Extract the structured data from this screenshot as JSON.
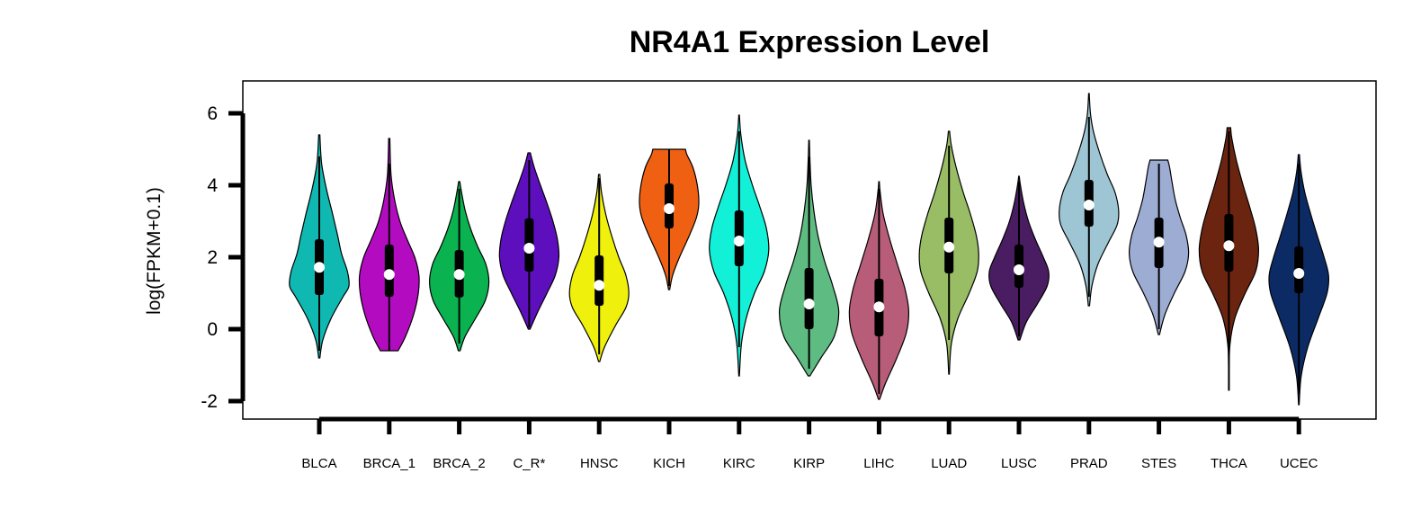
{
  "chart_data": {
    "type": "violin",
    "title": "NR4A1 Expression Level",
    "xlabel": "",
    "ylabel": "log(FPKM+0.1)",
    "ylim": [
      -2.5,
      6.9
    ],
    "yticks": [
      -2,
      0,
      2,
      4,
      6
    ],
    "ytick_labels": [
      "-2",
      "0",
      "2",
      "4",
      "6"
    ],
    "grid": false,
    "legend": "none",
    "categories": [
      "BLCA",
      "BRCA_1",
      "BRCA_2",
      "C_R*",
      "HNSC",
      "KICH",
      "KIRC",
      "KIRP",
      "LIHC",
      "LUAD",
      "LUSC",
      "PRAD",
      "STES",
      "THCA",
      "UCEC"
    ],
    "series": [
      {
        "category": "BLCA",
        "color": "#0fb8b1",
        "min": -0.8,
        "max": 5.4,
        "q1": 0.95,
        "median": 1.72,
        "q3": 2.5,
        "whisker_low": -0.6,
        "whisker_high": 4.8,
        "density": [
          [
            -0.8,
            0.02
          ],
          [
            -0.3,
            0.12
          ],
          [
            0.3,
            0.4
          ],
          [
            0.9,
            0.8
          ],
          [
            1.2,
            1.0
          ],
          [
            1.6,
            0.95
          ],
          [
            2.1,
            0.75
          ],
          [
            2.6,
            0.62
          ],
          [
            3.2,
            0.45
          ],
          [
            3.9,
            0.24
          ],
          [
            4.6,
            0.08
          ],
          [
            5.4,
            0.02
          ]
        ]
      },
      {
        "category": "BRCA_1",
        "color": "#b30cc0",
        "min": -0.6,
        "max": 5.3,
        "q1": 0.9,
        "median": 1.52,
        "q3": 2.35,
        "whisker_low": -0.6,
        "whisker_high": 4.6,
        "density": [
          [
            -0.6,
            0.3
          ],
          [
            -0.2,
            0.55
          ],
          [
            0.4,
            0.82
          ],
          [
            1.0,
            0.98
          ],
          [
            1.5,
            1.0
          ],
          [
            2.0,
            0.86
          ],
          [
            2.5,
            0.6
          ],
          [
            3.0,
            0.36
          ],
          [
            3.6,
            0.18
          ],
          [
            4.3,
            0.06
          ],
          [
            5.3,
            0.02
          ]
        ]
      },
      {
        "category": "BRCA_2",
        "color": "#0ab350",
        "min": -0.6,
        "max": 4.1,
        "q1": 0.88,
        "median": 1.52,
        "q3": 2.2,
        "whisker_low": -0.4,
        "whisker_high": 3.9,
        "density": [
          [
            -0.6,
            0.03
          ],
          [
            -0.2,
            0.2
          ],
          [
            0.3,
            0.55
          ],
          [
            0.8,
            0.88
          ],
          [
            1.3,
            1.0
          ],
          [
            1.8,
            0.9
          ],
          [
            2.3,
            0.62
          ],
          [
            2.8,
            0.38
          ],
          [
            3.3,
            0.2
          ],
          [
            3.8,
            0.08
          ],
          [
            4.1,
            0.02
          ]
        ]
      },
      {
        "category": "C_R*",
        "color": "#5d0fbd",
        "min": 0.0,
        "max": 4.9,
        "q1": 1.6,
        "median": 2.25,
        "q3": 3.08,
        "whisker_low": 0.05,
        "whisker_high": 4.7,
        "density": [
          [
            0.0,
            0.03
          ],
          [
            0.5,
            0.3
          ],
          [
            1.0,
            0.6
          ],
          [
            1.5,
            0.88
          ],
          [
            2.0,
            1.0
          ],
          [
            2.5,
            0.95
          ],
          [
            3.0,
            0.8
          ],
          [
            3.5,
            0.6
          ],
          [
            4.0,
            0.38
          ],
          [
            4.5,
            0.17
          ],
          [
            4.9,
            0.04
          ]
        ]
      },
      {
        "category": "HNSC",
        "color": "#f0f00d",
        "min": -0.9,
        "max": 4.3,
        "q1": 0.65,
        "median": 1.22,
        "q3": 2.05,
        "whisker_low": -0.7,
        "whisker_high": 4.2,
        "density": [
          [
            -0.9,
            0.02
          ],
          [
            -0.5,
            0.18
          ],
          [
            0.1,
            0.55
          ],
          [
            0.6,
            0.9
          ],
          [
            1.0,
            1.0
          ],
          [
            1.5,
            0.9
          ],
          [
            2.0,
            0.66
          ],
          [
            2.6,
            0.42
          ],
          [
            3.2,
            0.22
          ],
          [
            3.8,
            0.08
          ],
          [
            4.3,
            0.02
          ]
        ]
      },
      {
        "category": "KICH",
        "color": "#f06012",
        "min": 1.1,
        "max": 5.0,
        "q1": 2.8,
        "median": 3.35,
        "q3": 4.05,
        "whisker_low": 1.2,
        "whisker_high": 5.0,
        "density": [
          [
            1.1,
            0.02
          ],
          [
            1.5,
            0.12
          ],
          [
            2.0,
            0.35
          ],
          [
            2.6,
            0.68
          ],
          [
            3.1,
            0.92
          ],
          [
            3.5,
            1.0
          ],
          [
            4.0,
            0.95
          ],
          [
            4.5,
            0.8
          ],
          [
            4.85,
            0.6
          ],
          [
            5.0,
            0.55
          ]
        ]
      },
      {
        "category": "KIRC",
        "color": "#12f0d7",
        "min": -1.3,
        "max": 5.95,
        "q1": 1.75,
        "median": 2.45,
        "q3": 3.3,
        "whisker_low": -0.5,
        "whisker_high": 5.5,
        "density": [
          [
            -1.3,
            0.01
          ],
          [
            -0.4,
            0.08
          ],
          [
            0.3,
            0.24
          ],
          [
            1.0,
            0.52
          ],
          [
            1.6,
            0.85
          ],
          [
            2.2,
            1.0
          ],
          [
            2.8,
            0.92
          ],
          [
            3.4,
            0.7
          ],
          [
            4.0,
            0.45
          ],
          [
            4.7,
            0.2
          ],
          [
            5.4,
            0.06
          ],
          [
            5.95,
            0.01
          ]
        ]
      },
      {
        "category": "KIRP",
        "color": "#5ebb82",
        "min": -1.3,
        "max": 5.25,
        "q1": 0.0,
        "median": 0.7,
        "q3": 1.7,
        "whisker_low": -1.1,
        "whisker_high": 4.8,
        "density": [
          [
            -1.3,
            0.03
          ],
          [
            -0.8,
            0.4
          ],
          [
            -0.2,
            0.85
          ],
          [
            0.5,
            1.0
          ],
          [
            1.2,
            0.8
          ],
          [
            1.9,
            0.52
          ],
          [
            2.6,
            0.3
          ],
          [
            3.3,
            0.16
          ],
          [
            4.0,
            0.07
          ],
          [
            4.7,
            0.03
          ],
          [
            5.25,
            0.01
          ]
        ]
      },
      {
        "category": "LIHC",
        "color": "#b85d79",
        "min": -1.95,
        "max": 4.1,
        "q1": -0.2,
        "median": 0.62,
        "q3": 1.4,
        "whisker_low": -1.8,
        "whisker_high": 3.9,
        "density": [
          [
            -1.95,
            0.02
          ],
          [
            -1.5,
            0.22
          ],
          [
            -0.8,
            0.6
          ],
          [
            -0.1,
            0.92
          ],
          [
            0.5,
            1.0
          ],
          [
            1.1,
            0.88
          ],
          [
            1.8,
            0.62
          ],
          [
            2.5,
            0.36
          ],
          [
            3.2,
            0.14
          ],
          [
            3.8,
            0.04
          ],
          [
            4.1,
            0.01
          ]
        ]
      },
      {
        "category": "LUAD",
        "color": "#98bd64",
        "min": -1.25,
        "max": 5.5,
        "q1": 1.55,
        "median": 2.28,
        "q3": 3.1,
        "whisker_low": -0.3,
        "whisker_high": 5.1,
        "density": [
          [
            -1.25,
            0.01
          ],
          [
            -0.4,
            0.08
          ],
          [
            0.3,
            0.3
          ],
          [
            1.0,
            0.68
          ],
          [
            1.6,
            0.95
          ],
          [
            2.1,
            1.0
          ],
          [
            2.6,
            0.92
          ],
          [
            3.2,
            0.72
          ],
          [
            3.8,
            0.48
          ],
          [
            4.5,
            0.24
          ],
          [
            5.1,
            0.08
          ],
          [
            5.5,
            0.02
          ]
        ]
      },
      {
        "category": "LUSC",
        "color": "#4a1d62",
        "min": -0.3,
        "max": 4.25,
        "q1": 1.15,
        "median": 1.65,
        "q3": 2.35,
        "whisker_low": -0.2,
        "whisker_high": 4.1,
        "density": [
          [
            -0.3,
            0.03
          ],
          [
            0.2,
            0.25
          ],
          [
            0.7,
            0.62
          ],
          [
            1.2,
            0.95
          ],
          [
            1.6,
            1.0
          ],
          [
            2.0,
            0.82
          ],
          [
            2.5,
            0.55
          ],
          [
            3.0,
            0.32
          ],
          [
            3.5,
            0.16
          ],
          [
            4.0,
            0.05
          ],
          [
            4.25,
            0.01
          ]
        ]
      },
      {
        "category": "PRAD",
        "color": "#9dc5d3",
        "min": 0.65,
        "max": 6.55,
        "q1": 2.85,
        "median": 3.45,
        "q3": 4.15,
        "whisker_low": 0.9,
        "whisker_high": 5.9,
        "density": [
          [
            0.65,
            0.02
          ],
          [
            1.2,
            0.1
          ],
          [
            1.8,
            0.3
          ],
          [
            2.4,
            0.65
          ],
          [
            2.9,
            0.95
          ],
          [
            3.3,
            1.0
          ],
          [
            3.8,
            0.88
          ],
          [
            4.3,
            0.62
          ],
          [
            4.9,
            0.36
          ],
          [
            5.5,
            0.15
          ],
          [
            6.0,
            0.05
          ],
          [
            6.55,
            0.01
          ]
        ]
      },
      {
        "category": "STES",
        "color": "#9dacd3",
        "min": -0.15,
        "max": 4.7,
        "q1": 1.7,
        "median": 2.42,
        "q3": 3.1,
        "whisker_low": 0.0,
        "whisker_high": 4.6,
        "density": [
          [
            -0.15,
            0.02
          ],
          [
            0.4,
            0.2
          ],
          [
            1.0,
            0.52
          ],
          [
            1.6,
            0.88
          ],
          [
            2.1,
            1.0
          ],
          [
            2.6,
            0.92
          ],
          [
            3.1,
            0.72
          ],
          [
            3.6,
            0.55
          ],
          [
            4.1,
            0.44
          ],
          [
            4.5,
            0.36
          ],
          [
            4.7,
            0.3
          ]
        ]
      },
      {
        "category": "THCA",
        "color": "#6b2410",
        "min": -1.7,
        "max": 5.6,
        "q1": 1.6,
        "median": 2.32,
        "q3": 3.2,
        "whisker_low": -1.7,
        "whisker_high": 5.5,
        "density": [
          [
            -1.7,
            0.005
          ],
          [
            -0.5,
            0.03
          ],
          [
            0.3,
            0.2
          ],
          [
            1.0,
            0.55
          ],
          [
            1.6,
            0.9
          ],
          [
            2.2,
            1.0
          ],
          [
            2.8,
            0.9
          ],
          [
            3.4,
            0.7
          ],
          [
            4.0,
            0.48
          ],
          [
            4.7,
            0.25
          ],
          [
            5.3,
            0.1
          ],
          [
            5.6,
            0.06
          ]
        ]
      },
      {
        "category": "UCEC",
        "color": "#0c2b65",
        "min": -2.1,
        "max": 4.85,
        "q1": 1.0,
        "median": 1.55,
        "q3": 2.3,
        "whisker_low": -1.8,
        "whisker_high": 4.6,
        "density": [
          [
            -2.1,
            0.01
          ],
          [
            -1.3,
            0.08
          ],
          [
            -0.5,
            0.3
          ],
          [
            0.3,
            0.65
          ],
          [
            1.0,
            0.95
          ],
          [
            1.5,
            1.0
          ],
          [
            2.0,
            0.85
          ],
          [
            2.6,
            0.62
          ],
          [
            3.2,
            0.4
          ],
          [
            3.8,
            0.2
          ],
          [
            4.4,
            0.07
          ],
          [
            4.85,
            0.02
          ]
        ]
      }
    ]
  }
}
